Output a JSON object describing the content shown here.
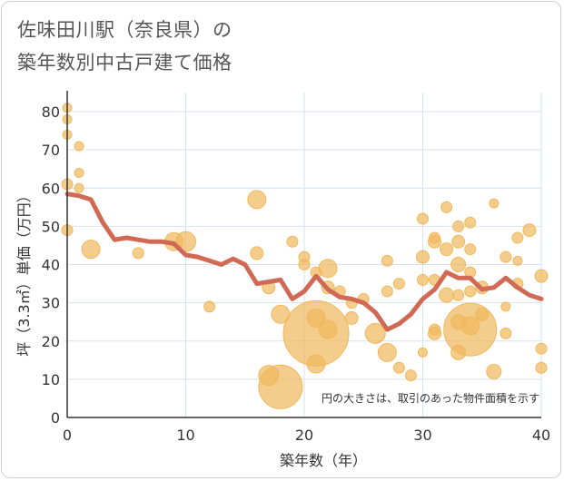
{
  "title": {
    "line1": "佐味田川駅（奈良県）の",
    "line2": "築年数別中古戸建て価格"
  },
  "note": "円の大きさは、取引のあった物件面積を示す",
  "colors": {
    "bubble": "#f0b85c",
    "line": "#d16a55",
    "grid": "#d6e2ee",
    "axis": "#333333"
  },
  "chart_data": {
    "type": "scatter",
    "xlabel": "築年数（年）",
    "ylabel": "坪（3.3㎡）単価（万円）",
    "xlim": [
      0,
      40
    ],
    "ylim": [
      0,
      85
    ],
    "x_ticks": [
      0,
      10,
      20,
      30,
      40
    ],
    "y_ticks": [
      0,
      10,
      20,
      30,
      40,
      50,
      60,
      70,
      80
    ],
    "grid": true,
    "series": [
      {
        "kind": "bubble",
        "points": [
          {
            "x": 0,
            "y": 81,
            "size": 5
          },
          {
            "x": 0,
            "y": 78,
            "size": 5
          },
          {
            "x": 0,
            "y": 74,
            "size": 5
          },
          {
            "x": 0,
            "y": 61,
            "size": 6
          },
          {
            "x": 0,
            "y": 49,
            "size": 6
          },
          {
            "x": 1,
            "y": 71,
            "size": 5
          },
          {
            "x": 1,
            "y": 64,
            "size": 5
          },
          {
            "x": 1,
            "y": 60,
            "size": 5
          },
          {
            "x": 2,
            "y": 44,
            "size": 10
          },
          {
            "x": 6,
            "y": 43,
            "size": 6
          },
          {
            "x": 9,
            "y": 46,
            "size": 10
          },
          {
            "x": 10,
            "y": 46,
            "size": 11
          },
          {
            "x": 12,
            "y": 29,
            "size": 6
          },
          {
            "x": 16,
            "y": 57,
            "size": 10
          },
          {
            "x": 16,
            "y": 43,
            "size": 7
          },
          {
            "x": 17,
            "y": 34,
            "size": 7
          },
          {
            "x": 17,
            "y": 11,
            "size": 11
          },
          {
            "x": 18,
            "y": 27,
            "size": 10
          },
          {
            "x": 18,
            "y": 8,
            "size": 24
          },
          {
            "x": 19,
            "y": 46,
            "size": 6
          },
          {
            "x": 20,
            "y": 42,
            "size": 6
          },
          {
            "x": 20,
            "y": 40,
            "size": 6
          },
          {
            "x": 21,
            "y": 38,
            "size": 6
          },
          {
            "x": 21,
            "y": 26,
            "size": 10
          },
          {
            "x": 21,
            "y": 22,
            "size": 36
          },
          {
            "x": 21,
            "y": 14,
            "size": 10
          },
          {
            "x": 22,
            "y": 39,
            "size": 10
          },
          {
            "x": 22,
            "y": 34,
            "size": 7
          },
          {
            "x": 22,
            "y": 23,
            "size": 10
          },
          {
            "x": 23,
            "y": 33,
            "size": 6
          },
          {
            "x": 24,
            "y": 30,
            "size": 6
          },
          {
            "x": 24,
            "y": 26,
            "size": 7
          },
          {
            "x": 25,
            "y": 31,
            "size": 6
          },
          {
            "x": 26,
            "y": 22,
            "size": 11
          },
          {
            "x": 27,
            "y": 41,
            "size": 6
          },
          {
            "x": 27,
            "y": 33,
            "size": 6
          },
          {
            "x": 27,
            "y": 17,
            "size": 10
          },
          {
            "x": 28,
            "y": 35,
            "size": 6
          },
          {
            "x": 28,
            "y": 13,
            "size": 6
          },
          {
            "x": 29,
            "y": 11,
            "size": 6
          },
          {
            "x": 30,
            "y": 52,
            "size": 6
          },
          {
            "x": 30,
            "y": 42,
            "size": 7
          },
          {
            "x": 30,
            "y": 36,
            "size": 6
          },
          {
            "x": 30,
            "y": 17,
            "size": 5
          },
          {
            "x": 31,
            "y": 47,
            "size": 6
          },
          {
            "x": 31,
            "y": 46,
            "size": 7
          },
          {
            "x": 31,
            "y": 36,
            "size": 6
          },
          {
            "x": 31,
            "y": 23,
            "size": 6
          },
          {
            "x": 31,
            "y": 22,
            "size": 7
          },
          {
            "x": 32,
            "y": 55,
            "size": 6
          },
          {
            "x": 32,
            "y": 44,
            "size": 7
          },
          {
            "x": 32,
            "y": 32,
            "size": 8
          },
          {
            "x": 33,
            "y": 50,
            "size": 6
          },
          {
            "x": 33,
            "y": 46,
            "size": 7
          },
          {
            "x": 33,
            "y": 40,
            "size": 8
          },
          {
            "x": 33,
            "y": 32,
            "size": 6
          },
          {
            "x": 33,
            "y": 25,
            "size": 8
          },
          {
            "x": 33,
            "y": 17,
            "size": 8
          },
          {
            "x": 34,
            "y": 51,
            "size": 6
          },
          {
            "x": 34,
            "y": 44,
            "size": 6
          },
          {
            "x": 34,
            "y": 38,
            "size": 6
          },
          {
            "x": 34,
            "y": 33,
            "size": 6
          },
          {
            "x": 34,
            "y": 24,
            "size": 10
          },
          {
            "x": 34,
            "y": 23,
            "size": 29
          },
          {
            "x": 35,
            "y": 34,
            "size": 7
          },
          {
            "x": 35,
            "y": 27,
            "size": 7
          },
          {
            "x": 36,
            "y": 56,
            "size": 5
          },
          {
            "x": 36,
            "y": 12,
            "size": 8
          },
          {
            "x": 37,
            "y": 42,
            "size": 6
          },
          {
            "x": 37,
            "y": 29,
            "size": 5
          },
          {
            "x": 37,
            "y": 22,
            "size": 6
          },
          {
            "x": 38,
            "y": 47,
            "size": 6
          },
          {
            "x": 38,
            "y": 41,
            "size": 5
          },
          {
            "x": 38,
            "y": 35,
            "size": 6
          },
          {
            "x": 39,
            "y": 49,
            "size": 7
          },
          {
            "x": 40,
            "y": 37,
            "size": 7
          },
          {
            "x": 40,
            "y": 18,
            "size": 6
          },
          {
            "x": 40,
            "y": 13,
            "size": 6
          }
        ]
      },
      {
        "kind": "line",
        "points": [
          {
            "x": 0,
            "y": 58.5
          },
          {
            "x": 1,
            "y": 58
          },
          {
            "x": 2,
            "y": 57
          },
          {
            "x": 3,
            "y": 51
          },
          {
            "x": 4,
            "y": 46.5
          },
          {
            "x": 5,
            "y": 47
          },
          {
            "x": 6,
            "y": 46.5
          },
          {
            "x": 7,
            "y": 46
          },
          {
            "x": 8,
            "y": 46
          },
          {
            "x": 9,
            "y": 45.5
          },
          {
            "x": 10,
            "y": 42.5
          },
          {
            "x": 11,
            "y": 42
          },
          {
            "x": 12,
            "y": 41
          },
          {
            "x": 13,
            "y": 40
          },
          {
            "x": 14,
            "y": 41.5
          },
          {
            "x": 15,
            "y": 40
          },
          {
            "x": 16,
            "y": 35
          },
          {
            "x": 17,
            "y": 35.5
          },
          {
            "x": 18,
            "y": 36
          },
          {
            "x": 19,
            "y": 31
          },
          {
            "x": 20,
            "y": 33
          },
          {
            "x": 21,
            "y": 37
          },
          {
            "x": 22,
            "y": 33.5
          },
          {
            "x": 23,
            "y": 31.5
          },
          {
            "x": 24,
            "y": 31
          },
          {
            "x": 25,
            "y": 30
          },
          {
            "x": 26,
            "y": 27.5
          },
          {
            "x": 27,
            "y": 23
          },
          {
            "x": 28,
            "y": 24.5
          },
          {
            "x": 29,
            "y": 27
          },
          {
            "x": 30,
            "y": 31
          },
          {
            "x": 31,
            "y": 33.5
          },
          {
            "x": 32,
            "y": 38
          },
          {
            "x": 33,
            "y": 36.5
          },
          {
            "x": 34,
            "y": 36.5
          },
          {
            "x": 35,
            "y": 33.5
          },
          {
            "x": 36,
            "y": 34
          },
          {
            "x": 37,
            "y": 36.5
          },
          {
            "x": 38,
            "y": 34
          },
          {
            "x": 39,
            "y": 32
          },
          {
            "x": 40,
            "y": 31
          }
        ]
      }
    ]
  }
}
